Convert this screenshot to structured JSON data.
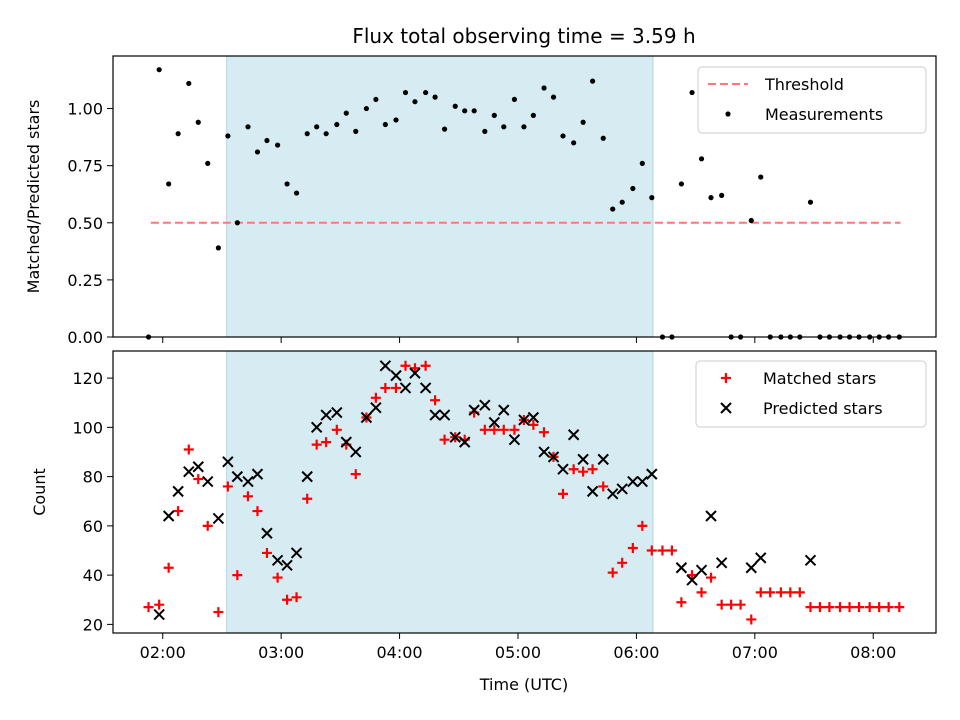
{
  "chart_data": {
    "type": "scatter",
    "title": "Flux total observing time = 3.59 h",
    "xlabel": "Time (UTC)",
    "xticks": [
      "02:00",
      "03:00",
      "04:00",
      "05:00",
      "06:00",
      "07:00",
      "08:00"
    ],
    "xticks_hours": [
      2,
      3,
      4,
      5,
      6,
      7,
      8
    ],
    "xlim_hours": [
      1.58,
      8.53
    ],
    "observing_window_hours": [
      2.54,
      6.14
    ],
    "observing_window_color": "#add8e6",
    "panels": [
      {
        "ylabel": "Matched/Predicted stars",
        "ylim": [
          0,
          1.23
        ],
        "yticks": [
          "0.00",
          "0.25",
          "0.50",
          "0.75",
          "1.00"
        ],
        "ytick_values": [
          0,
          0.25,
          0.5,
          0.75,
          1.0
        ],
        "legend": "top-right",
        "threshold": {
          "name": "Threshold",
          "y": 0.5,
          "x_range_hours": [
            1.9,
            8.23
          ],
          "color": "#ff7777",
          "style": "dashed"
        },
        "series": [
          {
            "name": "Measurements",
            "marker": "dot",
            "color": "#000000",
            "points": [
              [
                1.88,
                0.0
              ],
              [
                1.97,
                1.17
              ],
              [
                2.05,
                0.67
              ],
              [
                2.13,
                0.89
              ],
              [
                2.22,
                1.11
              ],
              [
                2.3,
                0.94
              ],
              [
                2.38,
                0.76
              ],
              [
                2.47,
                0.39
              ],
              [
                2.55,
                0.88
              ],
              [
                2.63,
                0.5
              ],
              [
                2.72,
                0.92
              ],
              [
                2.8,
                0.81
              ],
              [
                2.88,
                0.86
              ],
              [
                2.97,
                0.84
              ],
              [
                3.05,
                0.67
              ],
              [
                3.13,
                0.63
              ],
              [
                3.22,
                0.89
              ],
              [
                3.3,
                0.92
              ],
              [
                3.38,
                0.89
              ],
              [
                3.47,
                0.93
              ],
              [
                3.55,
                0.98
              ],
              [
                3.63,
                0.9
              ],
              [
                3.72,
                1.0
              ],
              [
                3.8,
                1.04
              ],
              [
                3.88,
                0.93
              ],
              [
                3.97,
                0.95
              ],
              [
                4.05,
                1.07
              ],
              [
                4.13,
                1.03
              ],
              [
                4.22,
                1.07
              ],
              [
                4.3,
                1.05
              ],
              [
                4.38,
                0.91
              ],
              [
                4.47,
                1.01
              ],
              [
                4.55,
                0.99
              ],
              [
                4.63,
                0.99
              ],
              [
                4.72,
                0.9
              ],
              [
                4.8,
                0.97
              ],
              [
                4.88,
                0.92
              ],
              [
                4.97,
                1.04
              ],
              [
                5.05,
                0.92
              ],
              [
                5.13,
                0.97
              ],
              [
                5.22,
                1.09
              ],
              [
                5.3,
                1.05
              ],
              [
                5.38,
                0.88
              ],
              [
                5.47,
                0.85
              ],
              [
                5.55,
                0.94
              ],
              [
                5.63,
                1.12
              ],
              [
                5.72,
                0.87
              ],
              [
                5.8,
                0.56
              ],
              [
                5.88,
                0.59
              ],
              [
                5.97,
                0.65
              ],
              [
                6.05,
                0.76
              ],
              [
                6.13,
                0.61
              ],
              [
                6.22,
                0.0
              ],
              [
                6.3,
                0.0
              ],
              [
                6.38,
                0.67
              ],
              [
                6.47,
                1.07
              ],
              [
                6.55,
                0.78
              ],
              [
                6.63,
                0.61
              ],
              [
                6.72,
                0.62
              ],
              [
                6.8,
                0.0
              ],
              [
                6.88,
                0.0
              ],
              [
                6.97,
                0.51
              ],
              [
                7.05,
                0.7
              ],
              [
                7.13,
                0.0
              ],
              [
                7.22,
                0.0
              ],
              [
                7.3,
                0.0
              ],
              [
                7.38,
                0.0
              ],
              [
                7.47,
                0.59
              ],
              [
                7.55,
                0.0
              ],
              [
                7.63,
                0.0
              ],
              [
                7.72,
                0.0
              ],
              [
                7.8,
                0.0
              ],
              [
                7.88,
                0.0
              ],
              [
                7.97,
                0.0
              ],
              [
                8.05,
                0.0
              ],
              [
                8.13,
                0.0
              ],
              [
                8.22,
                0.0
              ]
            ]
          }
        ]
      },
      {
        "ylabel": "Count",
        "ylim": [
          16.5,
          131
        ],
        "yticks": [
          "20",
          "40",
          "60",
          "80",
          "100",
          "120"
        ],
        "ytick_values": [
          20,
          40,
          60,
          80,
          100,
          120
        ],
        "legend": "top-right",
        "series": [
          {
            "name": "Matched stars",
            "marker": "plus",
            "color": "#ff0000",
            "points": [
              [
                1.88,
                27
              ],
              [
                1.97,
                28
              ],
              [
                2.05,
                43
              ],
              [
                2.13,
                66
              ],
              [
                2.22,
                91
              ],
              [
                2.3,
                79
              ],
              [
                2.38,
                60
              ],
              [
                2.47,
                25
              ],
              [
                2.55,
                76
              ],
              [
                2.63,
                40
              ],
              [
                2.72,
                72
              ],
              [
                2.8,
                66
              ],
              [
                2.88,
                49
              ],
              [
                2.97,
                39
              ],
              [
                3.05,
                30
              ],
              [
                3.13,
                31
              ],
              [
                3.22,
                71
              ],
              [
                3.3,
                93
              ],
              [
                3.38,
                94
              ],
              [
                3.47,
                99
              ],
              [
                3.55,
                93
              ],
              [
                3.63,
                81
              ],
              [
                3.72,
                104
              ],
              [
                3.8,
                112
              ],
              [
                3.88,
                116
              ],
              [
                3.97,
                116
              ],
              [
                4.05,
                125
              ],
              [
                4.13,
                124
              ],
              [
                4.22,
                125
              ],
              [
                4.3,
                111
              ],
              [
                4.38,
                95
              ],
              [
                4.47,
                96
              ],
              [
                4.55,
                95
              ],
              [
                4.63,
                106
              ],
              [
                4.72,
                99
              ],
              [
                4.8,
                99
              ],
              [
                4.88,
                99
              ],
              [
                4.97,
                99
              ],
              [
                5.05,
                103
              ],
              [
                5.13,
                101
              ],
              [
                5.22,
                98
              ],
              [
                5.3,
                88
              ],
              [
                5.38,
                73
              ],
              [
                5.47,
                83
              ],
              [
                5.55,
                82
              ],
              [
                5.63,
                83
              ],
              [
                5.72,
                76
              ],
              [
                5.8,
                41
              ],
              [
                5.88,
                45
              ],
              [
                5.97,
                51
              ],
              [
                6.05,
                60
              ],
              [
                6.13,
                50
              ],
              [
                6.22,
                50
              ],
              [
                6.3,
                50
              ],
              [
                6.38,
                29
              ],
              [
                6.47,
                40
              ],
              [
                6.55,
                33
              ],
              [
                6.63,
                39
              ],
              [
                6.72,
                28
              ],
              [
                6.8,
                28
              ],
              [
                6.88,
                28
              ],
              [
                6.97,
                22
              ],
              [
                7.05,
                33
              ],
              [
                7.13,
                33
              ],
              [
                7.22,
                33
              ],
              [
                7.3,
                33
              ],
              [
                7.38,
                33
              ],
              [
                7.47,
                27
              ],
              [
                7.55,
                27
              ],
              [
                7.63,
                27
              ],
              [
                7.72,
                27
              ],
              [
                7.8,
                27
              ],
              [
                7.88,
                27
              ],
              [
                7.97,
                27
              ],
              [
                8.05,
                27
              ],
              [
                8.13,
                27
              ],
              [
                8.22,
                27
              ]
            ]
          },
          {
            "name": "Predicted stars",
            "marker": "x",
            "color": "#000000",
            "points": [
              [
                1.97,
                24
              ],
              [
                2.05,
                64
              ],
              [
                2.13,
                74
              ],
              [
                2.22,
                82
              ],
              [
                2.3,
                84
              ],
              [
                2.38,
                78
              ],
              [
                2.47,
                63
              ],
              [
                2.55,
                86
              ],
              [
                2.63,
                80
              ],
              [
                2.72,
                78
              ],
              [
                2.8,
                81
              ],
              [
                2.88,
                57
              ],
              [
                2.97,
                46
              ],
              [
                3.05,
                44
              ],
              [
                3.13,
                49
              ],
              [
                3.22,
                80
              ],
              [
                3.3,
                100
              ],
              [
                3.38,
                105
              ],
              [
                3.47,
                106
              ],
              [
                3.55,
                94
              ],
              [
                3.63,
                90
              ],
              [
                3.72,
                104
              ],
              [
                3.8,
                108
              ],
              [
                3.88,
                125
              ],
              [
                3.97,
                121
              ],
              [
                4.05,
                116
              ],
              [
                4.13,
                122
              ],
              [
                4.22,
                116
              ],
              [
                4.3,
                105
              ],
              [
                4.38,
                105
              ],
              [
                4.47,
                96
              ],
              [
                4.55,
                94
              ],
              [
                4.63,
                107
              ],
              [
                4.72,
                109
              ],
              [
                4.8,
                102
              ],
              [
                4.88,
                107
              ],
              [
                4.97,
                95
              ],
              [
                5.05,
                103
              ],
              [
                5.13,
                104
              ],
              [
                5.22,
                90
              ],
              [
                5.3,
                88
              ],
              [
                5.38,
                83
              ],
              [
                5.47,
                97
              ],
              [
                5.55,
                87
              ],
              [
                5.63,
                74
              ],
              [
                5.72,
                87
              ],
              [
                5.8,
                73
              ],
              [
                5.88,
                75
              ],
              [
                5.97,
                78
              ],
              [
                6.05,
                78
              ],
              [
                6.13,
                81
              ],
              [
                6.38,
                43
              ],
              [
                6.47,
                38
              ],
              [
                6.55,
                42
              ],
              [
                6.63,
                64
              ],
              [
                6.72,
                45
              ],
              [
                6.97,
                43
              ],
              [
                7.05,
                47
              ],
              [
                7.47,
                46
              ]
            ]
          }
        ]
      }
    ]
  }
}
